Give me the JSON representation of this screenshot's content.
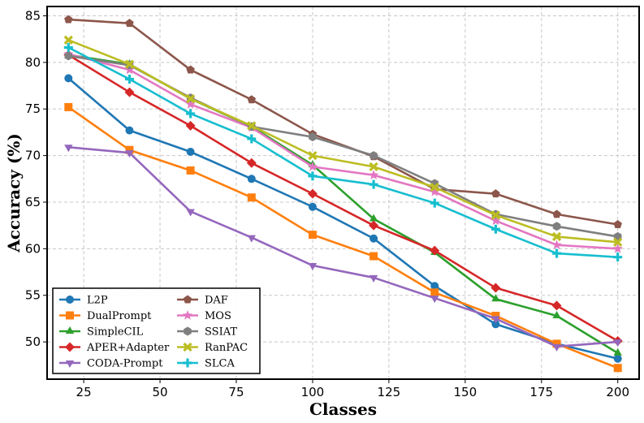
{
  "chart_data": {
    "type": "line",
    "title": "",
    "xlabel": "Classes",
    "ylabel": "Accuracy (%)",
    "xlim": [
      13,
      207
    ],
    "ylim": [
      46,
      86
    ],
    "xticks": [
      25,
      50,
      75,
      100,
      125,
      150,
      175,
      200
    ],
    "yticks": [
      50,
      55,
      60,
      65,
      70,
      75,
      80,
      85
    ],
    "grid": true,
    "legend_position": "lower-left",
    "legend_columns": 2,
    "x": [
      20,
      40,
      60,
      80,
      100,
      120,
      140,
      160,
      180,
      200
    ],
    "series": [
      {
        "name": "L2P",
        "color": "#1f77b4",
        "marker": "circle",
        "values": [
          78.3,
          72.7,
          70.4,
          67.5,
          64.5,
          61.1,
          56.0,
          51.9,
          49.8,
          48.2
        ]
      },
      {
        "name": "DualPrompt",
        "color": "#ff7f0e",
        "marker": "square",
        "values": [
          75.2,
          70.6,
          68.4,
          65.5,
          61.5,
          59.2,
          55.3,
          52.8,
          49.8,
          47.2
        ]
      },
      {
        "name": "SimpleCIL",
        "color": "#2ca02c",
        "marker": "triangle-up",
        "values": [
          80.8,
          79.8,
          76.1,
          73.1,
          69.0,
          63.2,
          59.6,
          54.6,
          52.8,
          48.8
        ]
      },
      {
        "name": "APER+Adapter",
        "color": "#d62728",
        "marker": "diamond",
        "values": [
          80.8,
          76.8,
          73.2,
          69.2,
          65.9,
          62.5,
          59.8,
          55.8,
          53.9,
          50.1
        ]
      },
      {
        "name": "CODA-Prompt",
        "color": "#9467bd",
        "marker": "triangle-down",
        "values": [
          70.9,
          70.3,
          64.0,
          61.2,
          58.2,
          56.9,
          54.7,
          52.5,
          49.5,
          50.0
        ]
      },
      {
        "name": "DAF",
        "color": "#8c564b",
        "marker": "pentagon",
        "values": [
          84.6,
          84.2,
          79.2,
          76.0,
          72.3,
          69.9,
          66.4,
          65.9,
          63.7,
          62.6
        ]
      },
      {
        "name": "MOS",
        "color": "#e377c2",
        "marker": "star",
        "values": [
          80.9,
          79.2,
          75.5,
          73.0,
          68.8,
          67.9,
          66.1,
          63.0,
          60.4,
          60.0
        ]
      },
      {
        "name": "SSIAT",
        "color": "#7f7f7f",
        "marker": "hexagon",
        "values": [
          80.7,
          79.7,
          76.2,
          73.1,
          72.0,
          70.0,
          67.0,
          63.7,
          62.4,
          61.3
        ]
      },
      {
        "name": "RanPAC",
        "color": "#bcbd22",
        "marker": "x",
        "values": [
          82.4,
          79.8,
          76.1,
          73.2,
          70.0,
          68.8,
          66.6,
          63.6,
          61.3,
          60.7
        ]
      },
      {
        "name": "SLCA",
        "color": "#17becf",
        "marker": "plus",
        "values": [
          81.6,
          78.2,
          74.5,
          71.8,
          67.8,
          66.9,
          64.9,
          62.1,
          59.5,
          59.1
        ]
      }
    ]
  }
}
